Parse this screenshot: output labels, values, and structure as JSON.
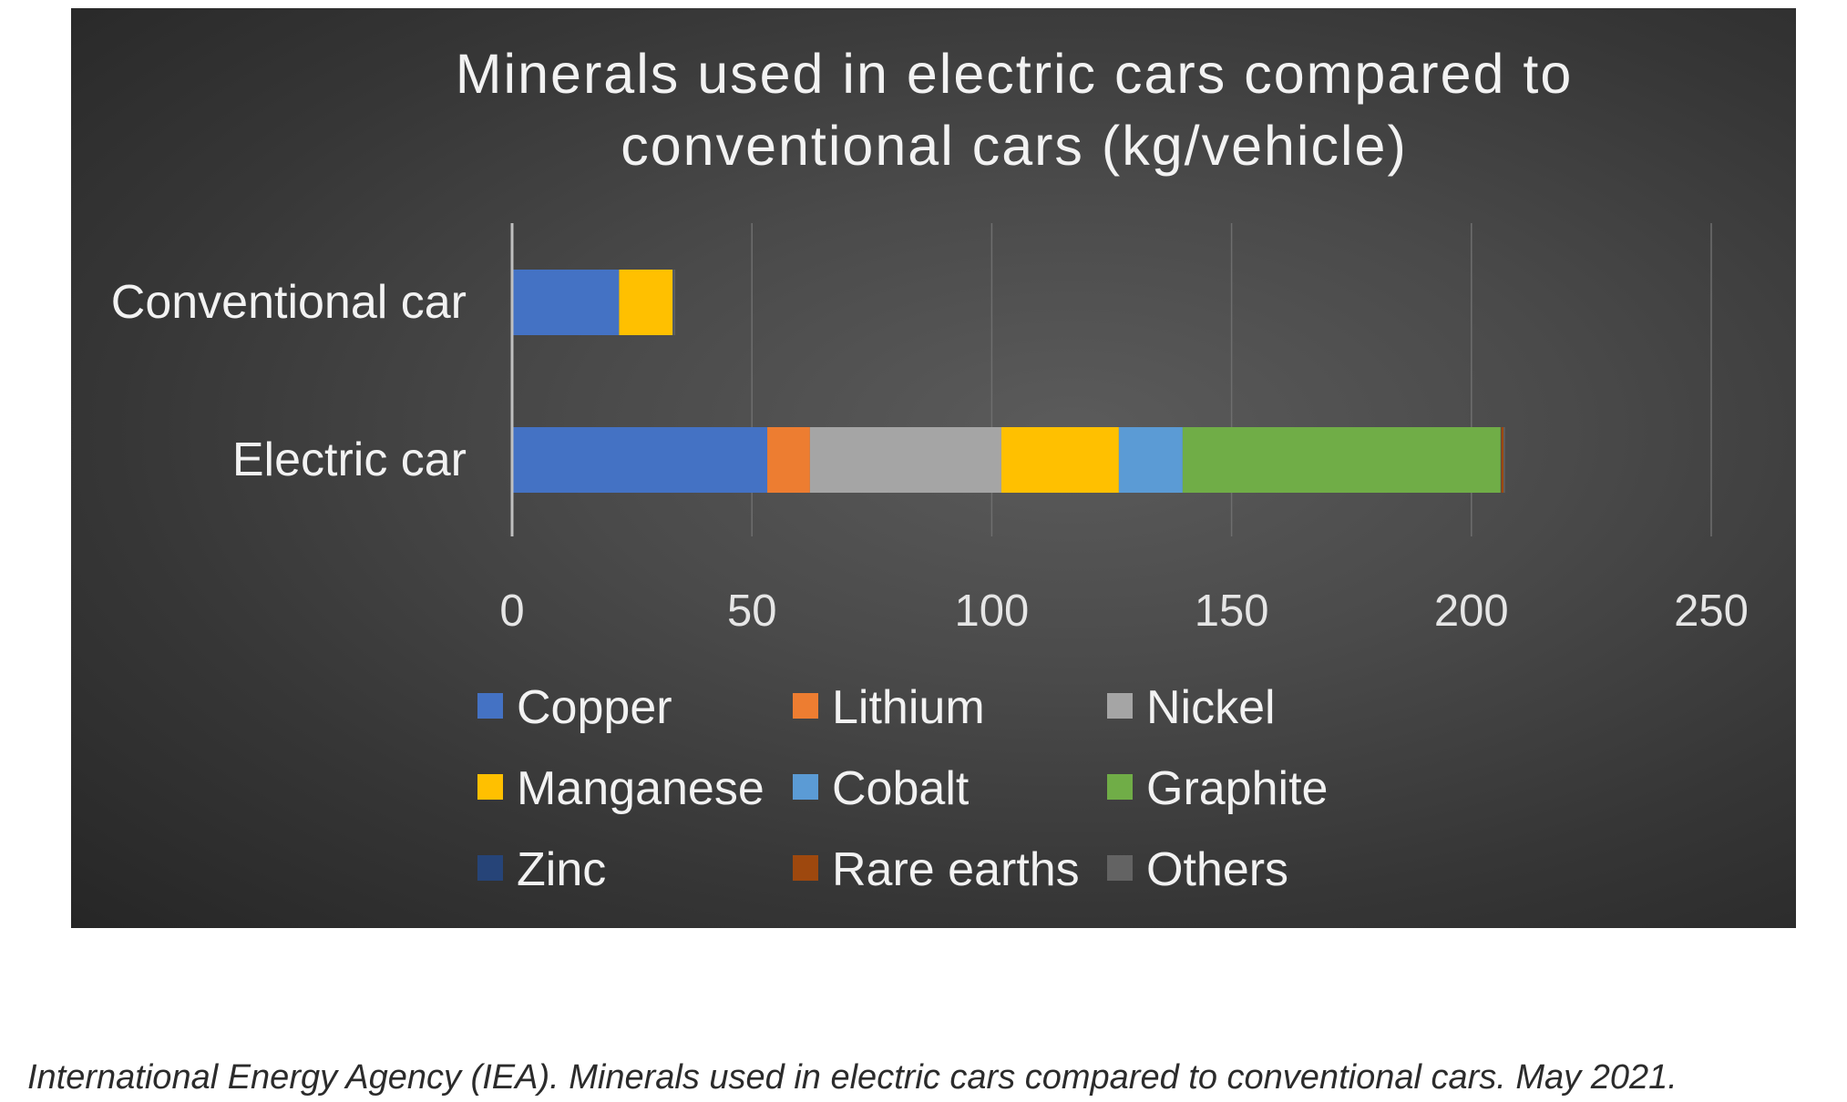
{
  "caption": "International Energy Agency (IEA). Minerals used in electric cars compared to conventional cars. May 2021.",
  "chart_data": {
    "type": "bar",
    "orientation": "horizontal",
    "stacked": true,
    "title_lines": [
      "Minerals used in electric cars compared to",
      "conventional cars (kg/vehicle)"
    ],
    "categories": [
      "Conventional car",
      "Electric car"
    ],
    "xlim": [
      0,
      250
    ],
    "xticks": [
      0,
      50,
      100,
      150,
      200,
      250
    ],
    "grid": true,
    "legend_position": "bottom",
    "series": [
      {
        "name": "Copper",
        "color": "#4472C4",
        "values": [
          22.3,
          53.2
        ]
      },
      {
        "name": "Lithium",
        "color": "#ED7D31",
        "values": [
          0,
          8.9
        ]
      },
      {
        "name": "Nickel",
        "color": "#A5A5A5",
        "values": [
          0,
          39.9
        ]
      },
      {
        "name": "Manganese",
        "color": "#FFC000",
        "values": [
          11.2,
          24.5
        ]
      },
      {
        "name": "Cobalt",
        "color": "#5B9BD5",
        "values": [
          0,
          13.3
        ]
      },
      {
        "name": "Graphite",
        "color": "#70AD47",
        "values": [
          0,
          66.3
        ]
      },
      {
        "name": "Zinc",
        "color": "#264478",
        "values": [
          0.2,
          0.1
        ]
      },
      {
        "name": "Rare earths",
        "color": "#9E480E",
        "values": [
          0,
          0.5
        ]
      },
      {
        "name": "Others",
        "color": "#636363",
        "values": [
          0.3,
          0.3
        ]
      }
    ]
  }
}
